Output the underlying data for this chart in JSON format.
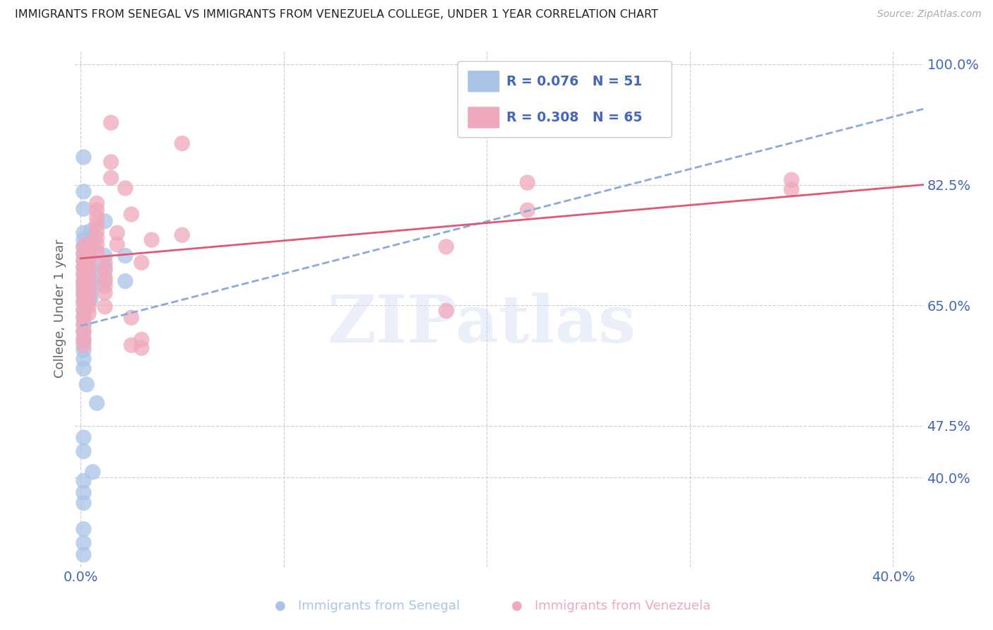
{
  "title": "IMMIGRANTS FROM SENEGAL VS IMMIGRANTS FROM VENEZUELA COLLEGE, UNDER 1 YEAR CORRELATION CHART",
  "source": "Source: ZipAtlas.com",
  "ylabel": "College, Under 1 year",
  "legend_label_blue": "Immigrants from Senegal",
  "legend_label_pink": "Immigrants from Venezuela",
  "R_blue": 0.076,
  "N_blue": 51,
  "R_pink": 0.308,
  "N_pink": 65,
  "xmin": -0.003,
  "xmax": 0.415,
  "ymin": 0.27,
  "ymax": 1.02,
  "ytick_vals": [
    1.0,
    0.825,
    0.65,
    0.475,
    0.4
  ],
  "ytick_labels": [
    "100.0%",
    "82.5%",
    "65.0%",
    "47.5%",
    "40.0%"
  ],
  "xtick_vals": [
    0.0,
    0.1,
    0.2,
    0.3,
    0.4
  ],
  "xtick_labels": [
    "0.0%",
    "",
    "",
    "",
    "40.0%"
  ],
  "watermark": "ZIPatlas",
  "blue_color": "#aac4e8",
  "pink_color": "#f0a8bc",
  "blue_line_color": "#88aadd",
  "pink_line_color": "#e05878",
  "axis_label_color": "#4466bb",
  "grid_color": "#d0d0d0",
  "blue_scatter": [
    [
      0.0015,
      0.865
    ],
    [
      0.0015,
      0.815
    ],
    [
      0.0015,
      0.79
    ],
    [
      0.0015,
      0.755
    ],
    [
      0.0015,
      0.745
    ],
    [
      0.0015,
      0.735
    ],
    [
      0.0015,
      0.725
    ],
    [
      0.0015,
      0.715
    ],
    [
      0.0015,
      0.705
    ],
    [
      0.0015,
      0.695
    ],
    [
      0.0015,
      0.685
    ],
    [
      0.0015,
      0.68
    ],
    [
      0.0015,
      0.672
    ],
    [
      0.0015,
      0.665
    ],
    [
      0.0015,
      0.655
    ],
    [
      0.0015,
      0.643
    ],
    [
      0.0015,
      0.633
    ],
    [
      0.0015,
      0.622
    ],
    [
      0.0015,
      0.612
    ],
    [
      0.0015,
      0.598
    ],
    [
      0.0015,
      0.585
    ],
    [
      0.0015,
      0.572
    ],
    [
      0.0015,
      0.558
    ],
    [
      0.005,
      0.758
    ],
    [
      0.005,
      0.745
    ],
    [
      0.005,
      0.733
    ],
    [
      0.005,
      0.72
    ],
    [
      0.005,
      0.708
    ],
    [
      0.005,
      0.698
    ],
    [
      0.005,
      0.688
    ],
    [
      0.005,
      0.678
    ],
    [
      0.005,
      0.668
    ],
    [
      0.005,
      0.658
    ],
    [
      0.012,
      0.772
    ],
    [
      0.012,
      0.722
    ],
    [
      0.012,
      0.705
    ],
    [
      0.012,
      0.685
    ],
    [
      0.022,
      0.722
    ],
    [
      0.022,
      0.685
    ],
    [
      0.003,
      0.535
    ],
    [
      0.008,
      0.508
    ],
    [
      0.0015,
      0.458
    ],
    [
      0.0015,
      0.438
    ],
    [
      0.006,
      0.408
    ],
    [
      0.0015,
      0.395
    ],
    [
      0.0015,
      0.378
    ],
    [
      0.0015,
      0.363
    ],
    [
      0.0015,
      0.325
    ],
    [
      0.0015,
      0.305
    ],
    [
      0.0015,
      0.288
    ]
  ],
  "pink_scatter": [
    [
      0.0015,
      0.735
    ],
    [
      0.0015,
      0.725
    ],
    [
      0.0015,
      0.715
    ],
    [
      0.0015,
      0.705
    ],
    [
      0.0015,
      0.695
    ],
    [
      0.0015,
      0.685
    ],
    [
      0.0015,
      0.675
    ],
    [
      0.0015,
      0.665
    ],
    [
      0.0015,
      0.655
    ],
    [
      0.0015,
      0.643
    ],
    [
      0.0015,
      0.632
    ],
    [
      0.0015,
      0.622
    ],
    [
      0.0015,
      0.612
    ],
    [
      0.0015,
      0.602
    ],
    [
      0.0015,
      0.592
    ],
    [
      0.004,
      0.74
    ],
    [
      0.004,
      0.728
    ],
    [
      0.004,
      0.718
    ],
    [
      0.004,
      0.708
    ],
    [
      0.004,
      0.698
    ],
    [
      0.004,
      0.688
    ],
    [
      0.004,
      0.678
    ],
    [
      0.004,
      0.668
    ],
    [
      0.004,
      0.658
    ],
    [
      0.004,
      0.648
    ],
    [
      0.004,
      0.638
    ],
    [
      0.008,
      0.798
    ],
    [
      0.008,
      0.788
    ],
    [
      0.008,
      0.778
    ],
    [
      0.008,
      0.768
    ],
    [
      0.008,
      0.758
    ],
    [
      0.008,
      0.748
    ],
    [
      0.008,
      0.738
    ],
    [
      0.008,
      0.728
    ],
    [
      0.012,
      0.712
    ],
    [
      0.012,
      0.7
    ],
    [
      0.012,
      0.69
    ],
    [
      0.012,
      0.678
    ],
    [
      0.012,
      0.668
    ],
    [
      0.012,
      0.648
    ],
    [
      0.015,
      0.915
    ],
    [
      0.015,
      0.858
    ],
    [
      0.015,
      0.835
    ],
    [
      0.018,
      0.755
    ],
    [
      0.018,
      0.738
    ],
    [
      0.022,
      0.82
    ],
    [
      0.025,
      0.782
    ],
    [
      0.025,
      0.632
    ],
    [
      0.025,
      0.592
    ],
    [
      0.03,
      0.712
    ],
    [
      0.03,
      0.6
    ],
    [
      0.03,
      0.588
    ],
    [
      0.035,
      0.745
    ],
    [
      0.05,
      0.885
    ],
    [
      0.05,
      0.752
    ],
    [
      0.18,
      0.735
    ],
    [
      0.18,
      0.642
    ],
    [
      0.22,
      0.828
    ],
    [
      0.22,
      0.788
    ],
    [
      0.35,
      0.832
    ],
    [
      0.35,
      0.818
    ]
  ],
  "blue_trend_x": [
    0.0,
    0.415
  ],
  "blue_trend_y": [
    0.62,
    0.935
  ],
  "pink_trend_x": [
    0.0,
    0.415
  ],
  "pink_trend_y": [
    0.718,
    0.825
  ]
}
